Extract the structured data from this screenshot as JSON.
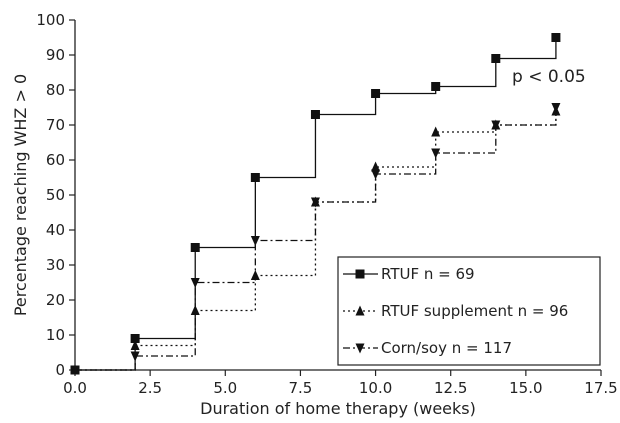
{
  "chart_data": {
    "type": "line",
    "step": true,
    "xlabel": "Duration of home therapy (weeks)",
    "ylabel": "Percentage reaching WHZ > 0",
    "xlim": [
      0,
      17.5
    ],
    "ylim": [
      0,
      100
    ],
    "xticks": [
      "0.0",
      "2.5",
      "5.0",
      "7.5",
      "10.0",
      "12.5",
      "15.0",
      "17.5"
    ],
    "yticks": [
      "0",
      "10",
      "20",
      "30",
      "40",
      "50",
      "60",
      "70",
      "80",
      "90",
      "100"
    ],
    "grid": false,
    "legend_position": "right",
    "annotation": "p < 0.05",
    "series": [
      {
        "name": "RTUF n = 69",
        "marker": "square",
        "dash": "solid",
        "x": [
          0,
          2,
          4,
          6,
          8,
          10,
          12,
          14,
          16
        ],
        "y": [
          0,
          9,
          35,
          55,
          73,
          79,
          81,
          89,
          95
        ]
      },
      {
        "name": "RTUF supplement n = 96",
        "marker": "triangle-up",
        "dash": "dotted",
        "x": [
          0,
          2,
          4,
          6,
          8,
          10,
          12,
          14,
          16
        ],
        "y": [
          0,
          7,
          17,
          27,
          48,
          58,
          68,
          70,
          74
        ]
      },
      {
        "name": "Corn/soy n = 117",
        "marker": "triangle-down",
        "dash": "dashdot",
        "x": [
          0,
          2,
          4,
          6,
          8,
          10,
          12,
          14,
          16
        ],
        "y": [
          0,
          4,
          25,
          37,
          48,
          56,
          62,
          70,
          75
        ]
      }
    ]
  }
}
